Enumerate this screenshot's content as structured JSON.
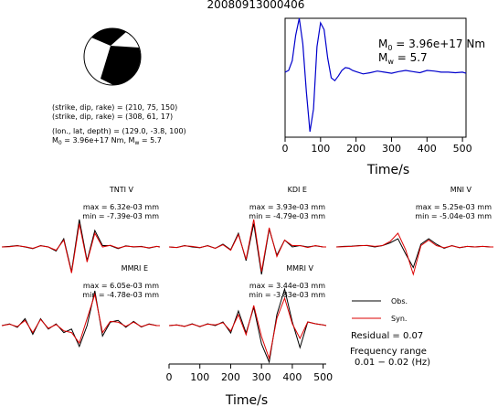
{
  "title": "20080913000406",
  "mechanism": {
    "strike_dip_rake_1": "(strike, dip, rake) = (210, 75, 150)",
    "strike_dip_rake_2": "(strike, dip, rake) = (308, 61, 17)",
    "location": "(lon., lat, depth) = (129.0, -3.8, 100)",
    "moment_line_prefix": "M",
    "moment_line_sub": "0",
    "moment_line_mid": " = 3.96e+17 Nm, M",
    "moment_line_sub2": "w",
    "moment_line_end": " = 5.7"
  },
  "stf": {
    "m0_prefix": "M",
    "m0_sub": "0",
    "m0_text": " = 3.96e+17 Nm",
    "mw_prefix": "M",
    "mw_sub": "w",
    "mw_text": " = 5.7",
    "xlabel": "Time/s",
    "ticks": [
      "0",
      "100",
      "200",
      "300",
      "400",
      "500"
    ]
  },
  "panels": [
    {
      "name": "TNTI V",
      "max": "max = 6.32e-03 mm",
      "min": "min = -7.39e-03 mm"
    },
    {
      "name": "KDI E",
      "max": "max = 3.93e-03 mm",
      "min": "min = -4.79e-03 mm"
    },
    {
      "name": "MNI V",
      "max": "max = 5.25e-03 mm",
      "min": "min = -5.04e-03 mm"
    },
    {
      "name": "MMRI E",
      "max": "max = 6.05e-03 mm",
      "min": "min = -4.78e-03 mm"
    },
    {
      "name": "MMRI V",
      "max": "max = 3.44e-03 mm",
      "min": "min = -3.83e-03 mm"
    }
  ],
  "waveform_axis": {
    "xlabel": "Time/s",
    "ticks": [
      "0",
      "100",
      "200",
      "300",
      "400",
      "500"
    ]
  },
  "legend": {
    "obs": "Obs.",
    "syn": "Syn.",
    "residual": "Residual = 0.07",
    "freq_label": "Frequency range",
    "freq_value": "0.01 − 0.02 (Hz)"
  },
  "colors": {
    "observed": "#000000",
    "synthetic": "#dd0000",
    "stf": "#0000cc"
  },
  "chart_data": {
    "type": "line",
    "source_time_function": {
      "x": [
        0,
        10,
        20,
        30,
        40,
        50,
        60,
        70,
        80,
        90,
        100,
        110,
        120,
        130,
        140,
        150,
        160,
        170,
        180,
        190,
        200,
        220,
        240,
        260,
        280,
        300,
        320,
        340,
        360,
        380,
        400,
        420,
        440,
        460,
        480,
        500,
        510
      ],
      "y": [
        0.05,
        0.08,
        0.25,
        0.7,
        1.0,
        0.55,
        -0.3,
        -1.0,
        -0.6,
        0.5,
        0.92,
        0.8,
        0.3,
        -0.05,
        -0.1,
        -0.02,
        0.08,
        0.13,
        0.12,
        0.08,
        0.06,
        0.02,
        0.04,
        0.07,
        0.05,
        0.03,
        0.06,
        0.08,
        0.06,
        0.04,
        0.08,
        0.07,
        0.05,
        0.05,
        0.04,
        0.05,
        0.03
      ],
      "xlim": [
        0,
        510
      ]
    },
    "waveforms": [
      {
        "station": "TNTI V",
        "t": [
          0,
          25,
          50,
          75,
          100,
          125,
          150,
          175,
          200,
          225,
          250,
          275,
          300,
          325,
          350,
          375,
          400,
          425,
          450,
          475,
          500,
          510
        ],
        "obs": [
          0.0,
          0.02,
          0.05,
          0.0,
          -0.06,
          0.05,
          0.0,
          -0.15,
          0.3,
          -0.9,
          1.0,
          -0.5,
          0.6,
          0.05,
          0.05,
          -0.06,
          0.04,
          0.0,
          0.02,
          -0.04,
          0.02,
          0.0
        ],
        "syn": [
          0.0,
          0.01,
          0.04,
          0.01,
          -0.05,
          0.04,
          0.0,
          -0.12,
          0.25,
          -0.95,
          0.85,
          -0.55,
          0.5,
          0.0,
          0.06,
          -0.04,
          0.03,
          0.01,
          0.01,
          -0.03,
          0.02,
          0.0
        ]
      },
      {
        "station": "KDI E",
        "t": [
          0,
          25,
          50,
          75,
          100,
          125,
          150,
          175,
          200,
          225,
          250,
          275,
          300,
          325,
          350,
          375,
          400,
          425,
          450,
          475,
          500,
          510
        ],
        "obs": [
          0.0,
          -0.02,
          0.05,
          0.0,
          -0.03,
          0.05,
          -0.05,
          0.1,
          -0.1,
          0.5,
          -0.5,
          0.85,
          -1.0,
          0.65,
          -0.3,
          0.25,
          0.0,
          0.05,
          0.0,
          0.04,
          0.0,
          0.0
        ],
        "syn": [
          0.0,
          -0.02,
          0.04,
          0.02,
          -0.02,
          0.04,
          -0.05,
          0.08,
          -0.12,
          0.45,
          -0.45,
          1.0,
          -0.9,
          0.7,
          -0.35,
          0.25,
          0.05,
          0.05,
          -0.02,
          0.05,
          0.0,
          0.0
        ]
      },
      {
        "station": "MNI V",
        "t": [
          0,
          25,
          50,
          75,
          100,
          125,
          150,
          175,
          200,
          225,
          250,
          275,
          300,
          325,
          350,
          375,
          400,
          425,
          450,
          475,
          500,
          510
        ],
        "obs": [
          0.0,
          0.02,
          0.03,
          0.05,
          0.05,
          0.0,
          0.05,
          0.15,
          0.3,
          -0.25,
          -0.75,
          0.1,
          0.3,
          0.1,
          -0.05,
          0.05,
          -0.03,
          0.02,
          0.0,
          0.02,
          0.0,
          0.0
        ],
        "syn": [
          0.0,
          0.01,
          0.02,
          0.04,
          0.06,
          0.02,
          0.05,
          0.2,
          0.5,
          -0.1,
          -1.0,
          0.05,
          0.25,
          0.05,
          -0.03,
          0.04,
          -0.02,
          0.02,
          0.0,
          0.02,
          0.0,
          0.0
        ]
      },
      {
        "station": "MMRI E",
        "t": [
          0,
          25,
          50,
          75,
          100,
          125,
          150,
          175,
          200,
          225,
          250,
          275,
          300,
          325,
          350,
          375,
          400,
          425,
          450,
          475,
          500,
          510
        ],
        "obs": [
          0.0,
          0.05,
          -0.05,
          0.2,
          -0.25,
          0.2,
          -0.1,
          0.05,
          -0.2,
          -0.1,
          -0.6,
          0.0,
          1.0,
          -0.3,
          0.1,
          0.15,
          -0.05,
          0.12,
          -0.04,
          0.05,
          0.0,
          0.0
        ],
        "syn": [
          0.0,
          0.04,
          -0.03,
          0.15,
          -0.2,
          0.18,
          -0.08,
          0.03,
          -0.15,
          -0.2,
          -0.5,
          0.2,
          0.9,
          -0.2,
          0.12,
          0.1,
          -0.02,
          0.1,
          -0.03,
          0.04,
          0.0,
          0.0
        ]
      },
      {
        "station": "MMRI V",
        "t": [
          0,
          25,
          50,
          75,
          100,
          125,
          150,
          175,
          200,
          225,
          250,
          275,
          300,
          325,
          350,
          375,
          400,
          425,
          450,
          475,
          500,
          510
        ],
        "obs": [
          0.0,
          0.02,
          -0.02,
          0.05,
          -0.03,
          0.05,
          0.0,
          0.1,
          -0.2,
          0.4,
          -0.2,
          0.5,
          -0.5,
          -1.0,
          0.3,
          1.0,
          0.1,
          -0.6,
          0.1,
          0.05,
          0.02,
          0.0
        ],
        "syn": [
          0.0,
          0.02,
          -0.02,
          0.04,
          -0.02,
          0.04,
          0.02,
          0.08,
          -0.15,
          0.3,
          -0.25,
          0.55,
          -0.3,
          -0.9,
          0.2,
          0.75,
          0.05,
          -0.35,
          0.1,
          0.05,
          0.02,
          0.0
        ]
      }
    ]
  }
}
